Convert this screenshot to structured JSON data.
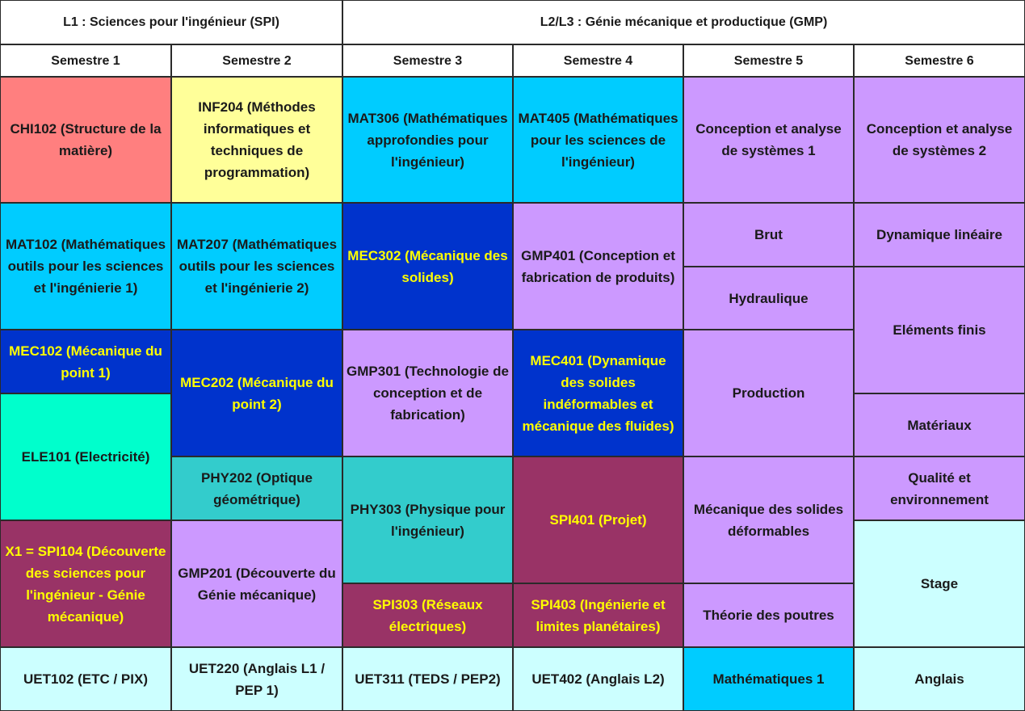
{
  "headers": {
    "l1": "L1 : Sciences pour l'ingénieur (SPI)",
    "l2l3": "L2/L3 : Génie mécanique et productique (GMP)"
  },
  "semesters": [
    "Semestre 1",
    "Semestre 2",
    "Semestre 3",
    "Semestre 4",
    "Semestre 5",
    "Semestre 6"
  ],
  "colors": {
    "salmon": "#FF7F7F",
    "yellow": "#FFFF99",
    "cyan": "#00CCFF",
    "dark_blue": "#0033CC",
    "lavender": "#CC99FF",
    "aqua": "#00FFCC",
    "teal": "#33CCCC",
    "plum": "#993366",
    "light_cyan": "#CCFFFF",
    "highlight_text": "#FFFF00",
    "normal_text": "#1a1a1a"
  },
  "courses": {
    "chi102": "CHI102 (Structure de la matière)",
    "mat102": "MAT102 (Mathématiques outils pour les sciences et l'ingénierie 1)",
    "mec102": "MEC102 (Mécanique du point 1)",
    "ele101": "ELE101 (Electricité)",
    "spi104": "X1 = SPI104 (Découverte des sciences pour l'ingénieur - Génie mécanique)",
    "uet102": "UET102 (ETC / PIX)",
    "inf204": "INF204 (Méthodes informatiques et techniques de programmation)",
    "mat207": "MAT207 (Mathématiques outils pour les sciences et l'ingénierie 2)",
    "mec202": "MEC202 (Mécanique du point 2)",
    "phy202": "PHY202 (Optique géométrique)",
    "gmp201": "GMP201 (Découverte du Génie mécanique)",
    "uet220": "UET220 (Anglais L1 / PEP 1)",
    "mat306": "MAT306 (Mathématiques approfondies pour l'ingénieur)",
    "mec302": "MEC302 (Mécanique des solides)",
    "gmp301": "GMP301 (Technologie de conception et de fabrication)",
    "phy303": "PHY303 (Physique pour l'ingénieur)",
    "spi303": "SPI303 (Réseaux électriques)",
    "uet311": "UET311 (TEDS / PEP2)",
    "mat405": "MAT405 (Mathématiques pour les sciences de l'ingénieur)",
    "gmp401": "GMP401 (Conception et fabrication de produits)",
    "mec401": "MEC401 (Dynamique des solides indéformables et mécanique des fluides)",
    "spi401": "SPI401 (Projet)",
    "spi403": "SPI403 (Ingénierie et limites planétaires)",
    "uet402": "UET402 (Anglais L2)",
    "s5_conception": "Conception et analyse de systèmes 1",
    "s5_brut": "Brut",
    "s5_hydraulique": "Hydraulique",
    "s5_production": "Production",
    "s5_meca_def": "Mécanique des solides déformables",
    "s5_poutres": "Théorie des poutres",
    "s5_maths": "Mathématiques 1",
    "s6_conception": "Conception et analyse de systèmes 2",
    "s6_dynamique": "Dynamique linéaire",
    "s6_elements": "Eléments finis",
    "s6_materiaux": "Matériaux",
    "s6_qualite": "Qualité et environnement",
    "s6_stage": "Stage",
    "s6_anglais": "Anglais"
  }
}
